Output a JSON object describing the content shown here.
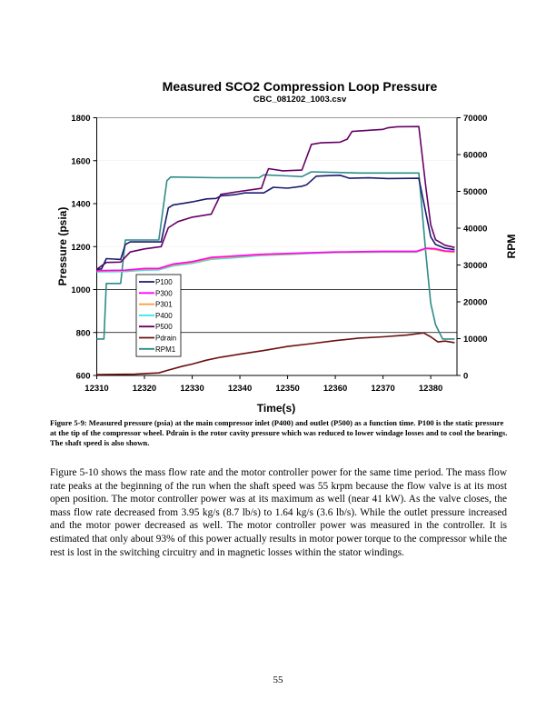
{
  "chart_data": {
    "type": "line",
    "title": "Measured SCO2 Compression Loop Pressure",
    "subtitle": "CBC_081202_1003.csv",
    "xlabel": "Time(s)",
    "ylabel": "Pressure (psia)",
    "y2label": "RPM",
    "xlim": [
      12310,
      12385.5
    ],
    "ylim": [
      600,
      1800
    ],
    "y2lim": [
      0,
      70000
    ],
    "xticks": [
      "12310",
      "12320",
      "12330",
      "12340",
      "12350",
      "12360",
      "12370",
      "12380"
    ],
    "yticks": [
      "600",
      "800",
      "1000",
      "1200",
      "1400",
      "1600",
      "1800"
    ],
    "y2ticks": [
      "0",
      "10000",
      "20000",
      "30000",
      "40000",
      "50000",
      "60000",
      "70000"
    ],
    "grid": "horizontal lines at 800 and 1000",
    "legend": "lower-left",
    "series": [
      {
        "name": "P100",
        "color": "#1a1a6e",
        "axis": "left",
        "x": [
          12310,
          12311,
          12312,
          12315,
          12316,
          12317,
          12323.5,
          12325,
          12326,
          12328,
          12330,
          12333,
          12335,
          12336,
          12339,
          12341,
          12345,
          12347,
          12350,
          12353,
          12354,
          12356,
          12358,
          12361,
          12363,
          12367,
          12371,
          12377.5,
          12380,
          12381,
          12383,
          12385
        ],
        "y": [
          1094,
          1096,
          1144,
          1140,
          1210,
          1222,
          1222,
          1380,
          1394,
          1401,
          1408,
          1422,
          1424,
          1436,
          1442,
          1450,
          1450,
          1476,
          1472,
          1481,
          1488,
          1528,
          1530,
          1532,
          1518,
          1520,
          1517,
          1518,
          1246,
          1210,
          1192,
          1186
        ]
      },
      {
        "name": "P300",
        "color": "#ff00ff",
        "axis": "left",
        "x": [
          12310,
          12316,
          12320,
          12323,
          12326,
          12330,
          12334,
          12340,
          12344,
          12350,
          12355,
          12360,
          12370,
          12377,
          12379,
          12381,
          12383,
          12385
        ],
        "y": [
          1088,
          1090,
          1098,
          1098,
          1119,
          1130,
          1150,
          1158,
          1164,
          1168,
          1172,
          1175,
          1178,
          1178,
          1192,
          1190,
          1180,
          1178
        ]
      },
      {
        "name": "P301",
        "color": "#ff9933",
        "axis": "left",
        "x": [
          12310,
          12316,
          12320,
          12323,
          12326,
          12330,
          12334,
          12340,
          12344,
          12350,
          12355,
          12360,
          12370,
          12377,
          12379,
          12381,
          12383,
          12385
        ],
        "y": [
          1086,
          1088,
          1095,
          1096,
          1115,
          1126,
          1145,
          1155,
          1161,
          1165,
          1170,
          1173,
          1176,
          1176,
          1190,
          1186,
          1177,
          1174
        ]
      },
      {
        "name": "P400",
        "color": "#33e6e6",
        "axis": "left",
        "x": [
          12310,
          12316,
          12320,
          12323,
          12326,
          12330,
          12334,
          12340,
          12344,
          12350,
          12355,
          12360,
          12370,
          12377,
          12379,
          12381,
          12383,
          12385
        ],
        "y": [
          1082,
          1084,
          1090,
          1092,
          1110,
          1122,
          1141,
          1150,
          1158,
          1163,
          1168,
          1172,
          1174,
          1174,
          1190,
          1188,
          1180,
          1177
        ]
      },
      {
        "name": "P500",
        "color": "#660066",
        "axis": "left",
        "x": [
          12310,
          12312,
          12315,
          12317,
          12320,
          12323.5,
          12325,
          12327,
          12330,
          12334,
          12336,
          12340,
          12344.5,
          12345.5,
          12346,
          12349,
          12353,
          12355,
          12357,
          12361,
          12362.5,
          12363.5,
          12370,
          12371,
          12373,
          12377.5,
          12379,
          12380,
          12381,
          12383,
          12385
        ],
        "y": [
          1094,
          1126,
          1128,
          1175,
          1189,
          1200,
          1288,
          1316,
          1337,
          1351,
          1443,
          1457,
          1471,
          1535,
          1563,
          1553,
          1556,
          1676,
          1683,
          1686,
          1700,
          1736,
          1746,
          1753,
          1758,
          1759,
          1471,
          1302,
          1232,
          1206,
          1196
        ]
      },
      {
        "name": "Pdrain",
        "color": "#6b0f0f",
        "axis": "left",
        "x": [
          12310,
          12318,
          12320,
          12323,
          12325,
          12328,
          12330,
          12333,
          12336,
          12340,
          12345,
          12350,
          12355,
          12360,
          12365,
          12370,
          12375,
          12378.5,
          12380,
          12381.5,
          12383,
          12385
        ],
        "y": [
          604,
          606,
          609,
          612,
          625,
          643,
          653,
          671,
          685,
          699,
          716,
          735,
          748,
          762,
          774,
          780,
          788,
          798,
          780,
          756,
          760,
          753
        ]
      },
      {
        "name": "RPM1",
        "color": "#2e8b87",
        "axis": "right",
        "x": [
          12310,
          12311.5,
          12312,
          12315,
          12316,
          12323,
          12324.7,
          12325.5,
          12335,
          12344,
          12345,
          12350,
          12353,
          12355,
          12365,
          12377.5,
          12379,
          12380,
          12381,
          12382.5,
          12385
        ],
        "y": [
          9900,
          9900,
          25000,
          25000,
          36800,
          36800,
          52900,
          53900,
          53700,
          53700,
          54500,
          54200,
          54000,
          55300,
          55000,
          55000,
          32700,
          19600,
          13800,
          9900,
          9900
        ]
      }
    ]
  },
  "caption": "Figure 5-9:  Measured pressure (psia) at the main compressor inlet (P400) and outlet (P500) as a function time.  P100 is the static pressure at the tip of the compressor wheel.  Pdrain is the rotor cavity pressure which was reduced to lower windage losses and to cool the bearings.   The shaft speed is also shown.",
  "body": "Figure 5-10 shows the mass flow rate and the motor controller power for the same time period.  The mass flow rate peaks at the beginning of the run when the shaft speed was 55 krpm because the flow valve is at its most open position.  The motor controller power was at its maximum as well (near 41 kW).  As the valve closes, the mass flow rate decreased from 3.95 kg/s (8.7 lb/s) to 1.64 kg/s (3.6 lb/s).  While the outlet pressure increased and the motor power decreased as well.  The motor controller power was measured in the controller.  It is estimated that only about 93% of this power actually results in motor power torque to the compressor while the rest is lost in the switching circuitry and in magnetic losses within the stator windings.",
  "page_number": "55"
}
